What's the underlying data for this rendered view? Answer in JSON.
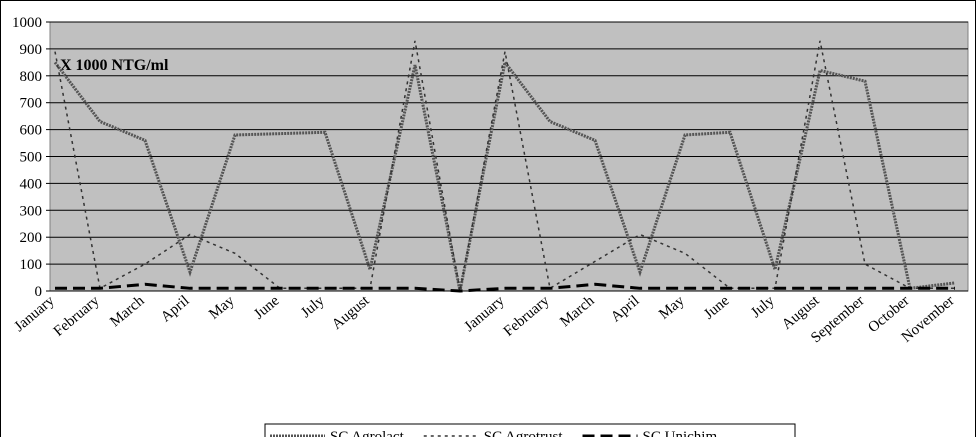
{
  "chart_data": {
    "type": "line",
    "annotation": "X 1000 NTG/ml",
    "categories": [
      "January",
      "February",
      "March",
      "April",
      "May",
      "June",
      "July",
      "August",
      null,
      null,
      "January",
      "February",
      "March",
      "April",
      "May",
      "June",
      "July",
      "August",
      "September",
      "October",
      "November"
    ],
    "series": [
      {
        "name": "SC Agrolact",
        "color": "#555555",
        "width": 3,
        "dash": "2 1",
        "values": [
          850,
          630,
          560,
          70,
          580,
          585,
          590,
          80,
          840,
          0,
          850,
          630,
          560,
          70,
          580,
          590,
          80,
          820,
          780,
          10,
          30
        ]
      },
      {
        "name": "SC Agrotrust",
        "color": "#333333",
        "width": 1.5,
        "dash": "3 4",
        "values": [
          890,
          10,
          100,
          210,
          140,
          10,
          10,
          10,
          930,
          0,
          890,
          10,
          110,
          210,
          140,
          10,
          10,
          930,
          100,
          10,
          10
        ]
      },
      {
        "name": "SC Unichim",
        "color": "#000000",
        "width": 3,
        "dash": "12 6",
        "values": [
          10,
          10,
          25,
          10,
          10,
          10,
          10,
          10,
          10,
          0,
          10,
          10,
          25,
          10,
          10,
          10,
          10,
          10,
          10,
          10,
          10
        ]
      }
    ],
    "ylim": [
      0,
      1000
    ],
    "yticks": [
      0,
      100,
      200,
      300,
      400,
      500,
      600,
      700,
      800,
      900,
      1000
    ],
    "grid": true,
    "legend": "bottom"
  }
}
